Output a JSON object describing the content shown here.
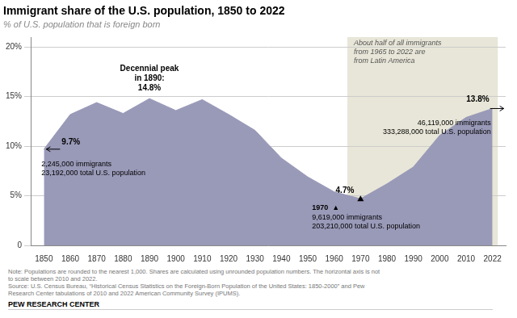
{
  "chart_data": {
    "type": "area",
    "title": "Immigrant share of the U.S. population, 1850 to 2022",
    "subtitle": "% of U.S. population that is foreign born",
    "categories": [
      "1850",
      "1860",
      "1870",
      "1880",
      "1890",
      "1900",
      "1910",
      "1920",
      "1930",
      "1940",
      "1950",
      "1960",
      "1970",
      "1980",
      "1990",
      "2000",
      "2010",
      "2022"
    ],
    "values": [
      9.7,
      13.2,
      14.4,
      13.3,
      14.8,
      13.6,
      14.7,
      13.2,
      11.6,
      8.8,
      6.9,
      5.4,
      4.7,
      6.2,
      7.9,
      11.1,
      12.9,
      13.8
    ],
    "color": "#9999b8",
    "ylim": [
      0,
      21
    ],
    "yticks": [
      0,
      {
        "value": 5,
        "label": "5%"
      },
      {
        "value": 10,
        "label": "10%"
      },
      {
        "value": 15,
        "label": "15%"
      },
      {
        "value": 20,
        "label": "20%"
      }
    ],
    "grid": true,
    "shaded_region": {
      "from": 1965,
      "to": 2022,
      "color": "#e8e6d8",
      "text": "About half of all immigrants\nfrom 1965 to 2022 are\nfrom Latin America"
    },
    "annotations": [
      {
        "x": "1850",
        "y": 9.7,
        "label": "9.7%",
        "detail": "2,245,000 immigrants\n23,192,000 total U.S. population"
      },
      {
        "x": "1890",
        "y": 14.8,
        "label": "Decennial peak\nin 1890:\n14.8%"
      },
      {
        "x": "1970",
        "y": 4.7,
        "label": "4.7%",
        "marker": "triangle",
        "marker_label": "1970  ▲",
        "detail": "9,619,000 immigrants\n203,210,000 total U.S. population"
      },
      {
        "x": "2022",
        "y": 13.8,
        "label": "13.8%",
        "detail": "46,119,000 immigrants\n333,288,000 total U.S. population"
      }
    ],
    "note": "Note: Populations are rounded to the nearest 1,000. Shares are calculated using unrounded population numbers. The horizontal axis is not\nto scale between 2010 and 2022.\nSource: U.S. Census Bureau, “Historical Census Statistics on the Foreign-Born Population of the United States: 1850-2000” and Pew\nResearch Center tabulations of 2010 and 2022 American Community Survey (IPUMS).",
    "branding": "PEW RESEARCH CENTER"
  }
}
